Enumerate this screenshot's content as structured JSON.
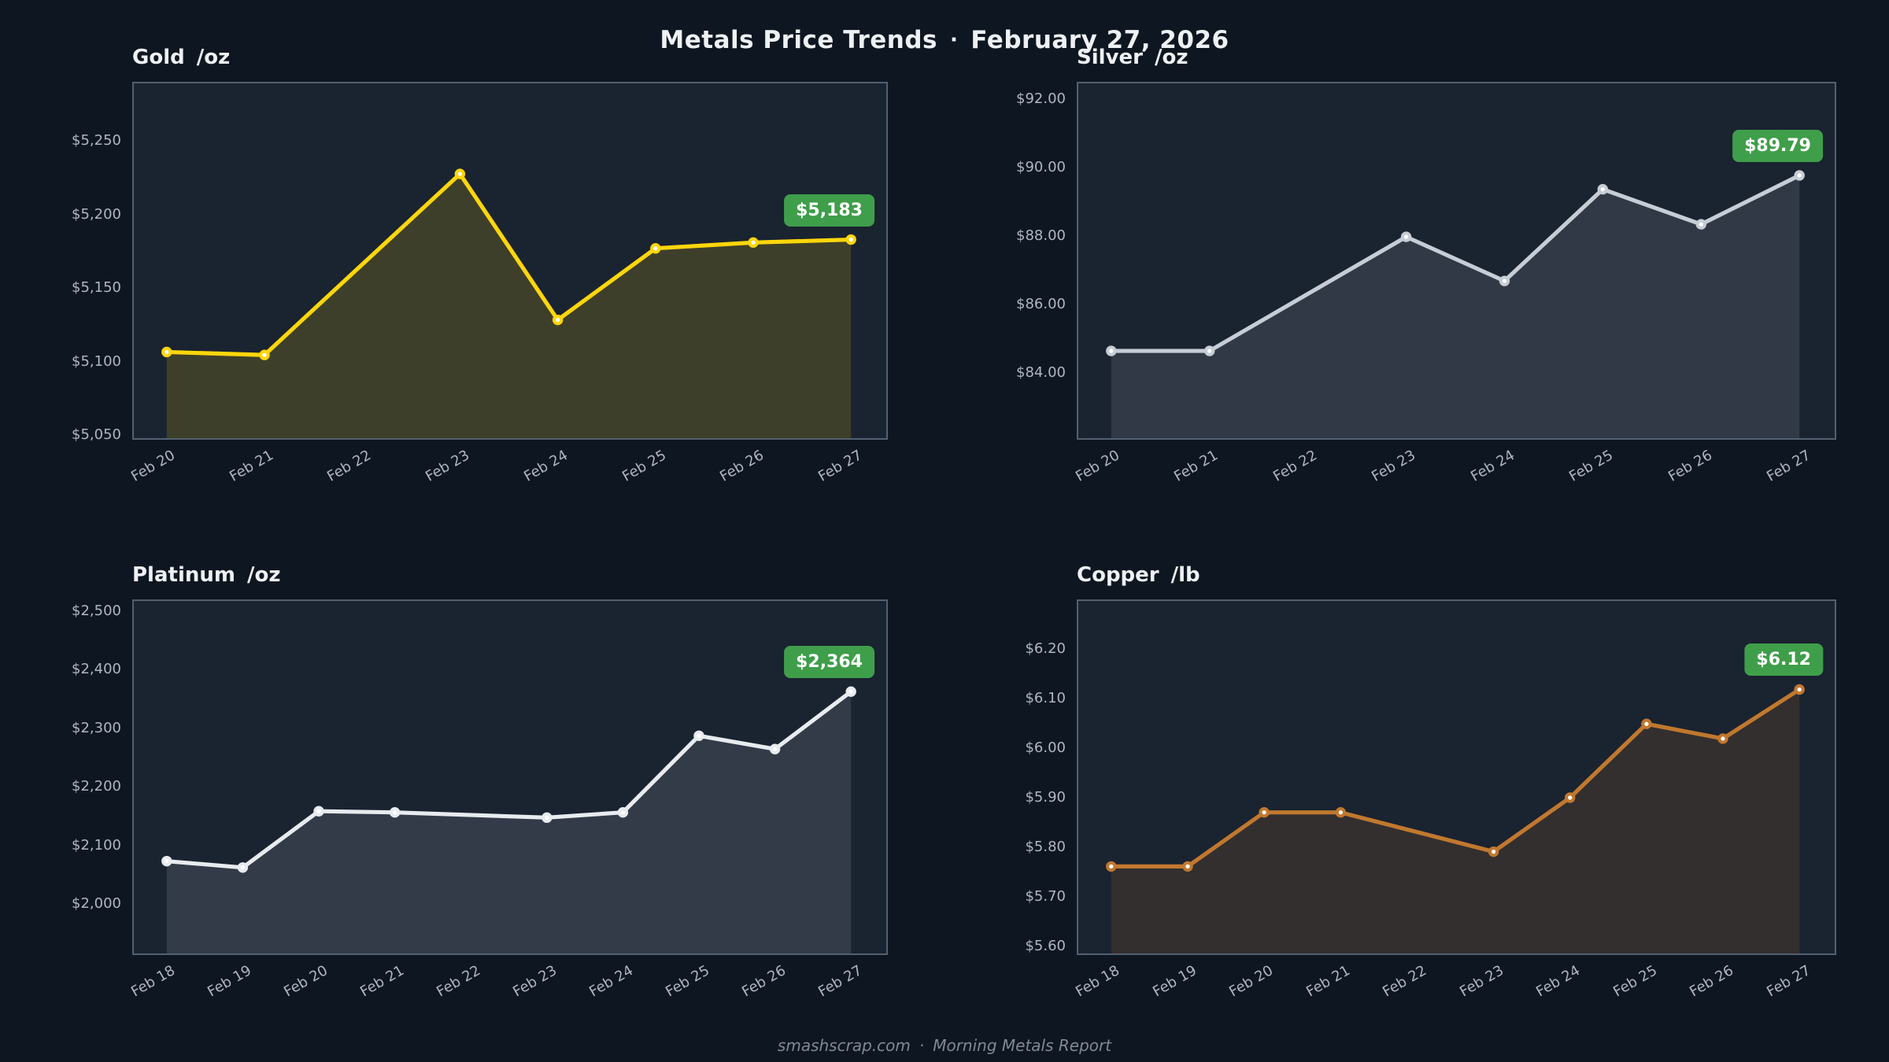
{
  "header": {
    "title": "Metals Price Trends",
    "separator": "·",
    "date": "February 27, 2026"
  },
  "footer": {
    "site": "smashscrap.com",
    "separator": "·",
    "report": "Morning Metals Report"
  },
  "colors": {
    "page_bg": "#0e1621",
    "panel_bg": "#1a2330",
    "panel_border": "#526070",
    "tick_label": "#aeb7c2",
    "title_text": "#eef1f4",
    "footer_text": "#7f8a96",
    "badge_bg": "#3f9e4a",
    "badge_text": "#ffffff",
    "gold_line": "#ffd60a",
    "silver_line": "#c7cdd6",
    "platinum_line": "#e8ebef",
    "copper_line": "#c1782e"
  },
  "charts": [
    {
      "name": "Gold",
      "unit": "/oz",
      "last_value_label": "$5,183",
      "chart_data": {
        "type": "area-line",
        "title": "Gold /oz",
        "line_color": "#ffd60a",
        "fill_color": "rgba(255,214,10,0.16)",
        "x_labels": [
          "Feb 20",
          "Feb 21",
          "Feb 22",
          "Feb 23",
          "Feb 24",
          "Feb 25",
          "Feb 26",
          "Feb 27"
        ],
        "x": [
          "Feb 20",
          "Feb 21",
          "Feb 23",
          "Feb 24",
          "Feb 25",
          "Feb 26",
          "Feb 27"
        ],
        "y": [
          5106,
          5104,
          5228,
          5128,
          5177,
          5181,
          5183
        ],
        "ylim": [
          5047,
          5290
        ],
        "yticks": [
          {
            "value": 5050,
            "label": "$5,050"
          },
          {
            "value": 5100,
            "label": "$5,100"
          },
          {
            "value": 5150,
            "label": "$5,150"
          },
          {
            "value": 5200,
            "label": "$5,200"
          },
          {
            "value": 5250,
            "label": "$5,250"
          }
        ]
      }
    },
    {
      "name": "Silver",
      "unit": "/oz",
      "last_value_label": "$89.79",
      "chart_data": {
        "type": "area-line",
        "title": "Silver /oz",
        "line_color": "#c7cdd6",
        "fill_color": "rgba(199,205,214,0.13)",
        "x_labels": [
          "Feb 20",
          "Feb 21",
          "Feb 22",
          "Feb 23",
          "Feb 24",
          "Feb 25",
          "Feb 26",
          "Feb 27"
        ],
        "x": [
          "Feb 20",
          "Feb 21",
          "Feb 23",
          "Feb 24",
          "Feb 25",
          "Feb 26",
          "Feb 27"
        ],
        "y": [
          84.62,
          84.62,
          87.98,
          86.68,
          89.38,
          88.35,
          89.79
        ],
        "ylim": [
          82.05,
          92.5
        ],
        "yticks": [
          {
            "value": 84,
            "label": "$84.00"
          },
          {
            "value": 86,
            "label": "$86.00"
          },
          {
            "value": 88,
            "label": "$88.00"
          },
          {
            "value": 90,
            "label": "$90.00"
          },
          {
            "value": 92,
            "label": "$92.00"
          }
        ]
      }
    },
    {
      "name": "Platinum",
      "unit": "/oz",
      "last_value_label": "$2,364",
      "chart_data": {
        "type": "area-line",
        "title": "Platinum /oz",
        "line_color": "#e8ebef",
        "fill_color": "rgba(232,235,239,0.12)",
        "x_labels": [
          "Feb 18",
          "Feb 19",
          "Feb 20",
          "Feb 21",
          "Feb 22",
          "Feb 23",
          "Feb 24",
          "Feb 25",
          "Feb 26",
          "Feb 27"
        ],
        "x": [
          "Feb 18",
          "Feb 19",
          "Feb 20",
          "Feb 21",
          "Feb 23",
          "Feb 24",
          "Feb 25",
          "Feb 26",
          "Feb 27"
        ],
        "y": [
          2072,
          2061,
          2158,
          2156,
          2147,
          2156,
          2288,
          2265,
          2364
        ],
        "ylim": [
          1913,
          2520
        ],
        "yticks": [
          {
            "value": 2000,
            "label": "$2,000"
          },
          {
            "value": 2100,
            "label": "$2,100"
          },
          {
            "value": 2200,
            "label": "$2,200"
          },
          {
            "value": 2300,
            "label": "$2,300"
          },
          {
            "value": 2400,
            "label": "$2,400"
          },
          {
            "value": 2500,
            "label": "$2,500"
          }
        ]
      }
    },
    {
      "name": "Copper",
      "unit": "/lb",
      "last_value_label": "$6.12",
      "chart_data": {
        "type": "area-line",
        "title": "Copper /lb",
        "line_color": "#c1782e",
        "fill_color": "rgba(193,120,46,0.15)",
        "x_labels": [
          "Feb 18",
          "Feb 19",
          "Feb 20",
          "Feb 21",
          "Feb 22",
          "Feb 23",
          "Feb 24",
          "Feb 25",
          "Feb 26",
          "Feb 27"
        ],
        "x": [
          "Feb 18",
          "Feb 19",
          "Feb 20",
          "Feb 21",
          "Feb 23",
          "Feb 24",
          "Feb 25",
          "Feb 26",
          "Feb 27"
        ],
        "y": [
          5.76,
          5.76,
          5.87,
          5.87,
          5.79,
          5.9,
          6.05,
          6.02,
          6.12
        ],
        "ylim": [
          5.583,
          6.3
        ],
        "yticks": [
          {
            "value": 5.6,
            "label": "$5.60"
          },
          {
            "value": 5.7,
            "label": "$5.70"
          },
          {
            "value": 5.8,
            "label": "$5.80"
          },
          {
            "value": 5.9,
            "label": "$5.90"
          },
          {
            "value": 6.0,
            "label": "$6.00"
          },
          {
            "value": 6.1,
            "label": "$6.10"
          },
          {
            "value": 6.2,
            "label": "$6.20"
          }
        ]
      }
    }
  ]
}
